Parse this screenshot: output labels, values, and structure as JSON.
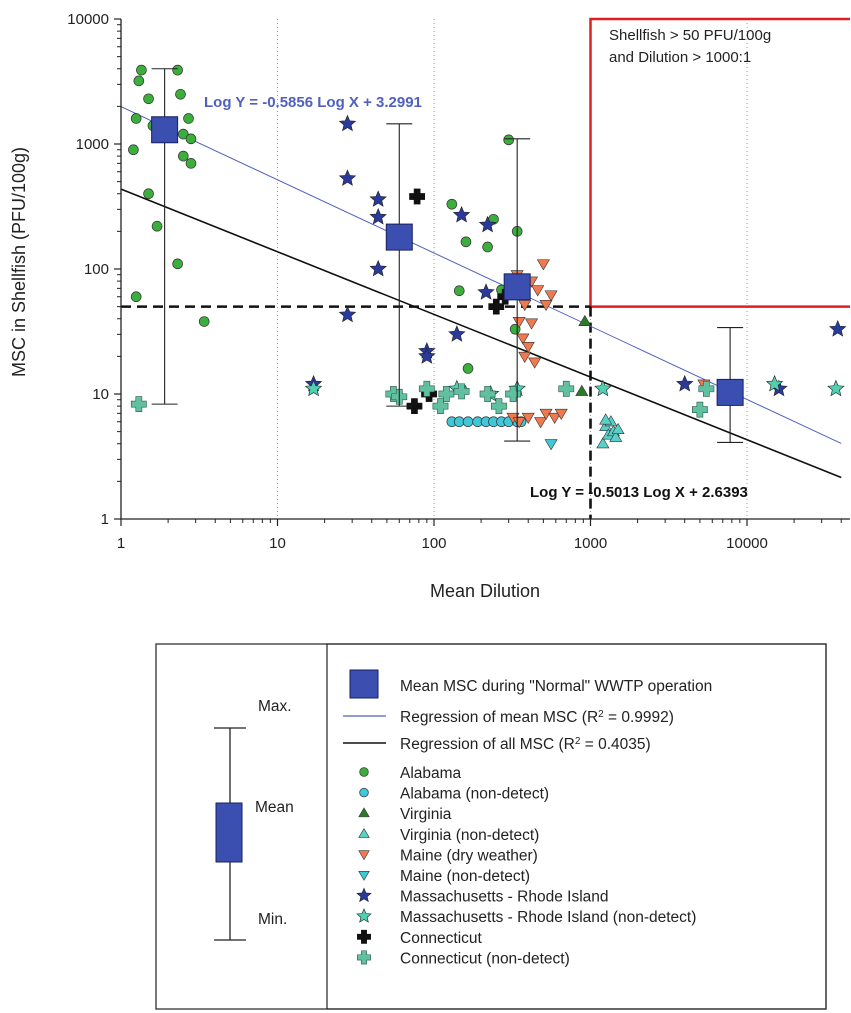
{
  "chart_data": {
    "type": "scatter",
    "xlabel": "Mean Dilution",
    "ylabel": "MSC in Shellfish (PFU/100g)",
    "x_scale": "log",
    "y_scale": "log",
    "xlim": [
      1,
      40000
    ],
    "ylim": [
      1,
      10000
    ],
    "x_ticks": [
      {
        "value": 1,
        "label": "1"
      },
      {
        "value": 10,
        "label": "10"
      },
      {
        "value": 100,
        "label": "100"
      },
      {
        "value": 1000,
        "label": "1000"
      },
      {
        "value": 10000,
        "label": "10000"
      }
    ],
    "y_ticks": [
      {
        "value": 1,
        "label": "1"
      },
      {
        "value": 10,
        "label": "10"
      },
      {
        "value": 100,
        "label": "100"
      },
      {
        "value": 1000,
        "label": "1000"
      },
      {
        "value": 10000,
        "label": "10000"
      }
    ],
    "grid": "vertical dotted lines at x = 10, 100, 1000, 10000",
    "threshold_lines": {
      "y": 50,
      "x": 1000
    },
    "annotation": {
      "line1": "Shellfish > 50 PFU/100g",
      "line2": "and Dilution > 1000:1",
      "region": {
        "x_min": 1000,
        "y_min": 50
      },
      "color": "#e02020"
    },
    "regressions": [
      {
        "name": "Regression of mean MSC",
        "r2_text": "(R",
        "r2_value": " = 0.9992)",
        "label": "Log Y = -0.5856 Log X + 3.2991",
        "slope": -0.5856,
        "intercept": 3.2991,
        "color": "#5060c0"
      },
      {
        "name": "Regression of all MSC",
        "r2_text": "(R",
        "r2_value": " = 0.4035)",
        "label": "Log Y = -0.5013 Log X + 2.6393",
        "slope": -0.5013,
        "intercept": 2.6393,
        "color": "#111111"
      }
    ],
    "mean_boxes": [
      {
        "x": 1.9,
        "mean": 1300,
        "min": 8.3,
        "max": 4000
      },
      {
        "x": 60,
        "mean": 180,
        "min": 8,
        "max": 1450
      },
      {
        "x": 340,
        "mean": 72,
        "min": 4.2,
        "max": 1100
      },
      {
        "x": 7800,
        "mean": 10.3,
        "min": 4.1,
        "max": 34
      }
    ],
    "series": [
      {
        "name": "Alabama",
        "marker": "circle",
        "color": "#3cae3c",
        "points": [
          [
            1.2,
            900
          ],
          [
            1.25,
            1600
          ],
          [
            1.3,
            3200
          ],
          [
            1.35,
            3900
          ],
          [
            1.5,
            2300
          ],
          [
            1.6,
            1400
          ],
          [
            1.5,
            400
          ],
          [
            1.7,
            220
          ],
          [
            1.25,
            60
          ],
          [
            2.3,
            3900
          ],
          [
            2.4,
            2500
          ],
          [
            2.5,
            1200
          ],
          [
            2.7,
            1600
          ],
          [
            2.8,
            1100
          ],
          [
            2.5,
            800
          ],
          [
            2.8,
            700
          ],
          [
            2.3,
            110
          ],
          [
            3.4,
            38
          ],
          [
            130,
            330
          ],
          [
            145,
            67
          ],
          [
            160,
            165
          ],
          [
            165,
            16
          ],
          [
            150,
            11
          ],
          [
            220,
            150
          ],
          [
            240,
            250
          ],
          [
            270,
            68
          ],
          [
            300,
            1080
          ],
          [
            330,
            33
          ],
          [
            340,
            200
          ]
        ]
      },
      {
        "name": "Alabama (non-detect)",
        "marker": "circle",
        "color": "#40c8d8",
        "points": [
          [
            130,
            6
          ],
          [
            145,
            6
          ],
          [
            165,
            6
          ],
          [
            190,
            6
          ],
          [
            215,
            6
          ],
          [
            240,
            6
          ],
          [
            270,
            6
          ],
          [
            300,
            6
          ],
          [
            340,
            6
          ],
          [
            360,
            6
          ]
        ]
      },
      {
        "name": "Virginia",
        "marker": "triangle-up",
        "color": "#2a7a2a",
        "points": [
          [
            920,
            38
          ],
          [
            880,
            10.5
          ]
        ]
      },
      {
        "name": "Virginia (non-detect)",
        "marker": "triangle-up",
        "color": "#5ad0c8",
        "points": [
          [
            1200,
            4
          ],
          [
            1250,
            5.5
          ],
          [
            1300,
            4.7
          ],
          [
            1350,
            6
          ],
          [
            1400,
            5
          ],
          [
            1450,
            4.5
          ],
          [
            1500,
            5.2
          ],
          [
            1250,
            6.2
          ]
        ]
      },
      {
        "name": "Maine (dry weather)",
        "marker": "triangle-down",
        "color": "#f07a50",
        "points": [
          [
            340,
            90
          ],
          [
            380,
            52
          ],
          [
            420,
            80
          ],
          [
            460,
            68
          ],
          [
            500,
            110
          ],
          [
            520,
            52
          ],
          [
            560,
            62
          ],
          [
            350,
            38
          ],
          [
            370,
            28
          ],
          [
            380,
            20
          ],
          [
            400,
            24
          ],
          [
            420,
            37
          ],
          [
            440,
            18
          ],
          [
            320,
            6.5
          ],
          [
            350,
            6
          ],
          [
            400,
            6.5
          ],
          [
            480,
            6
          ],
          [
            520,
            7
          ],
          [
            590,
            6.5
          ],
          [
            650,
            7
          ],
          [
            5300,
            12
          ]
        ]
      },
      {
        "name": "Maine (non-detect)",
        "marker": "triangle-down",
        "color": "#40c8d8",
        "points": [
          [
            560,
            4
          ]
        ]
      },
      {
        "name": "Massachusetts - Rhode Island",
        "marker": "star",
        "color": "#2a3a9a",
        "points": [
          [
            28,
            1450
          ],
          [
            28,
            530
          ],
          [
            44,
            360
          ],
          [
            44,
            260
          ],
          [
            44,
            100
          ],
          [
            28,
            43
          ],
          [
            90,
            22
          ],
          [
            90,
            20
          ],
          [
            140,
            30
          ],
          [
            150,
            270
          ],
          [
            220,
            225
          ],
          [
            215,
            65
          ],
          [
            17,
            12
          ],
          [
            4000,
            12
          ],
          [
            16000,
            11
          ],
          [
            38000,
            33
          ]
        ]
      },
      {
        "name": "Massachusetts - Rhode Island (non-detect)",
        "marker": "star",
        "color": "#50d0b0",
        "points": [
          [
            17,
            11
          ],
          [
            140,
            11
          ],
          [
            230,
            10
          ],
          [
            340,
            11
          ],
          [
            1200,
            11
          ],
          [
            15000,
            12
          ],
          [
            37000,
            11
          ]
        ]
      },
      {
        "name": "Connecticut",
        "marker": "plus",
        "color": "#111111",
        "points": [
          [
            78,
            380
          ],
          [
            75,
            8
          ],
          [
            250,
            50
          ],
          [
            285,
            60
          ],
          [
            93,
            10
          ]
        ]
      },
      {
        "name": "Connecticut (non-detect)",
        "marker": "plus",
        "color": "#60c0a0",
        "points": [
          [
            1.3,
            8.3
          ],
          [
            55,
            10
          ],
          [
            60,
            9.5
          ],
          [
            90,
            11
          ],
          [
            110,
            8
          ],
          [
            120,
            10
          ],
          [
            150,
            10.5
          ],
          [
            220,
            10
          ],
          [
            260,
            8
          ],
          [
            320,
            10
          ],
          [
            700,
            11
          ],
          [
            5000,
            7.5
          ],
          [
            5500,
            11
          ]
        ]
      }
    ]
  },
  "legend": {
    "mean_box_label": "Mean MSC during \"Normal\" WWTP operation",
    "key": {
      "max": "Max.",
      "mean": "Mean",
      "min": "Min."
    }
  },
  "colors": {
    "box_fill": "#3a4fb0",
    "box_stroke": "#1a2060",
    "axis": "#222222",
    "grid": "#999999",
    "annotation_red": "#e02020"
  }
}
